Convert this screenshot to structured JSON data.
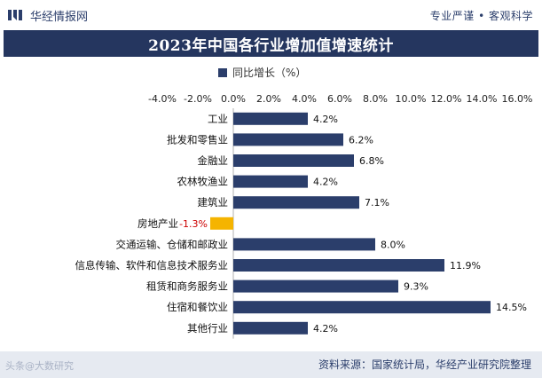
{
  "header": {
    "brand_name": "华经情报网",
    "slogan": "专业严谨 • 客观科学",
    "brand_icon": "hj-logo-icon"
  },
  "footer": {
    "source": "资料来源：国家统计局，华经产业研究院整理",
    "watermark": "头条@大数研究"
  },
  "colors": {
    "positive": "#2b3e6b",
    "negative": "#f5b400",
    "negative_label": "#cc0000",
    "title_bg": "#25365f"
  },
  "chart_data": {
    "type": "bar",
    "orientation": "horizontal",
    "title": "2023年中国各行业增加值增速统计",
    "legend": "同比增长（%）",
    "legend_position": "top",
    "xlim": [
      -4,
      16
    ],
    "x_ticks": [
      "-4.0%",
      "-2.0%",
      "0.0%",
      "2.0%",
      "4.0%",
      "6.0%",
      "8.0%",
      "10.0%",
      "12.0%",
      "14.0%",
      "16.0%"
    ],
    "x_tick_values": [
      -4,
      -2,
      0,
      2,
      4,
      6,
      8,
      10,
      12,
      14,
      16
    ],
    "categories": [
      "工业",
      "批发和零售业",
      "金融业",
      "农林牧渔业",
      "建筑业",
      "房地产业",
      "交通运输、仓储和邮政业",
      "信息传输、软件和信息技术服务业",
      "租赁和商务服务业",
      "住宿和餐饮业",
      "其他行业"
    ],
    "values": [
      4.2,
      6.2,
      6.8,
      4.2,
      7.1,
      -1.3,
      8.0,
      11.9,
      9.3,
      14.5,
      4.2
    ],
    "value_labels": [
      "4.2%",
      "6.2%",
      "6.8%",
      "4.2%",
      "7.1%",
      "-1.3%",
      "8.0%",
      "11.9%",
      "9.3%",
      "14.5%",
      "4.2%"
    ],
    "grid": false
  }
}
